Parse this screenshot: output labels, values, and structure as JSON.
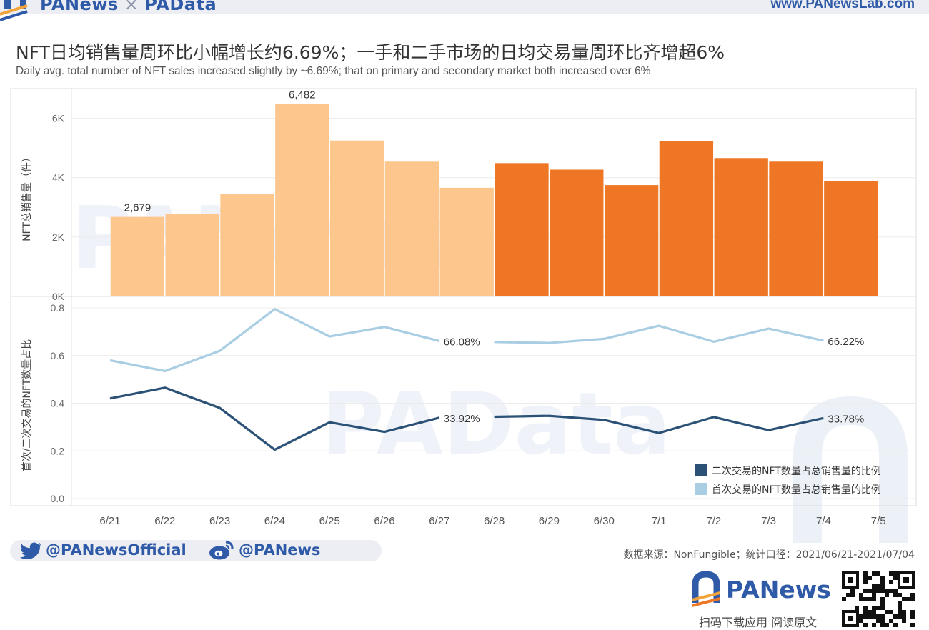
{
  "header": {
    "logo_left": "PANews",
    "logo_sep": "×",
    "logo_right": "PAData",
    "url": "www.PANewsLab.com"
  },
  "title": "NFT日均销售量周环比小幅增长约6.69%；一手和二手市场的日均交易量周环比齐增超6%",
  "subtitle": "Daily avg. total number of NFT sales increased slightly by ~6.69%; that on primary and secondary market both increased over 6%",
  "watermarks": [
    "PANews",
    "PAData"
  ],
  "colors": {
    "bar_week1": "#fdc68c",
    "bar_week2": "#ee7624",
    "line_primary": "#a9cde3",
    "line_secondary": "#2b5276",
    "brand": "#2f5aa8"
  },
  "chart_data": [
    {
      "type": "bar",
      "ylabel": "NFT总销售量（件）",
      "categories": [
        "6/21",
        "6/22",
        "6/23",
        "6/24",
        "6/25",
        "6/26",
        "6/27",
        "6/28",
        "6/29",
        "6/30",
        "7/1",
        "7/2",
        "7/3",
        "7/4"
      ],
      "values": [
        2679,
        2780,
        3450,
        6482,
        5250,
        4540,
        3660,
        4490,
        4270,
        3750,
        5220,
        4660,
        4540,
        3880
      ],
      "ylim": [
        0,
        7000
      ],
      "yticks": [
        0,
        2000,
        4000,
        6000
      ],
      "ytick_labels": [
        "0K",
        "2K",
        "4K",
        "6K"
      ],
      "data_labels": [
        {
          "index": 0,
          "text": "2,679"
        },
        {
          "index": 3,
          "text": "6,482"
        }
      ],
      "grid": true
    },
    {
      "type": "line",
      "ylabel": "首次/二次交易的NFT数量占比",
      "categories": [
        "6/21",
        "6/22",
        "6/23",
        "6/24",
        "6/25",
        "6/26",
        "6/27",
        "6/28",
        "6/29",
        "6/30",
        "7/1",
        "7/2",
        "7/3",
        "7/4"
      ],
      "x_ticks": [
        "6/21",
        "6/22",
        "6/23",
        "6/24",
        "6/25",
        "6/26",
        "6/27",
        "6/28",
        "6/29",
        "6/30",
        "7/1",
        "7/2",
        "7/3",
        "7/4",
        "7/5"
      ],
      "ylim": [
        0,
        0.8
      ],
      "yticks": [
        0,
        0.2,
        0.4,
        0.6,
        0.8
      ],
      "ytick_labels": [
        "0.0",
        "0.2",
        "0.4",
        "0.6",
        "0.8"
      ],
      "series": [
        {
          "name": "首次交易的NFT数量占总销售量的比例",
          "color": "#a9cde3",
          "segments": [
            {
              "x": [
                "6/21",
                "6/22",
                "6/23",
                "6/24",
                "6/25",
                "6/26",
                "6/27"
              ],
              "values": [
                0.58,
                0.535,
                0.62,
                0.795,
                0.68,
                0.72,
                0.6608
              ]
            },
            {
              "x": [
                "6/28",
                "6/29",
                "6/30",
                "7/1",
                "7/2",
                "7/3",
                "7/4"
              ],
              "values": [
                0.657,
                0.653,
                0.67,
                0.725,
                0.658,
                0.713,
                0.6622
              ]
            }
          ],
          "labels": [
            {
              "x": "6/27",
              "text": "66.08%"
            },
            {
              "x": "7/4",
              "text": "66.22%"
            }
          ]
        },
        {
          "name": "二次交易的NFT数量占总销售量的比例",
          "color": "#2b5276",
          "segments": [
            {
              "x": [
                "6/21",
                "6/22",
                "6/23",
                "6/24",
                "6/25",
                "6/26",
                "6/27"
              ],
              "values": [
                0.42,
                0.465,
                0.38,
                0.205,
                0.32,
                0.28,
                0.3392
              ]
            },
            {
              "x": [
                "6/28",
                "6/29",
                "6/30",
                "7/1",
                "7/2",
                "7/3",
                "7/4"
              ],
              "values": [
                0.343,
                0.347,
                0.33,
                0.275,
                0.342,
                0.287,
                0.3378
              ]
            }
          ],
          "labels": [
            {
              "x": "6/27",
              "text": "33.92%"
            },
            {
              "x": "7/4",
              "text": "33.78%"
            }
          ]
        }
      ],
      "legend": {
        "placement": "bottom-right",
        "entries": [
          "二次交易的NFT数量占总销售量的比例",
          "首次交易的NFT数量占总销售量的比例"
        ]
      },
      "grid": true
    }
  ],
  "footer": {
    "twitter": "@PANewsOfficial",
    "weibo": "@PANews",
    "source": "数据来源：NonFungible；统计口径：2021/06/21-2021/07/04",
    "brand": "PANews",
    "cta": "扫码下载应用 阅读原文"
  }
}
